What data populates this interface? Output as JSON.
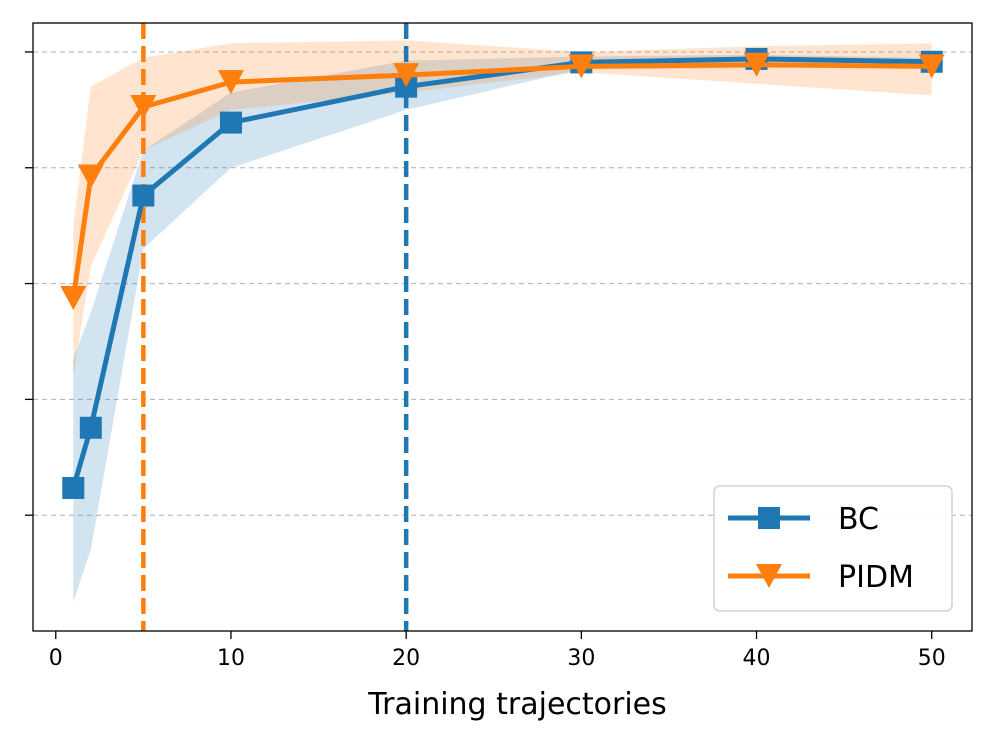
{
  "chart_data": {
    "type": "line",
    "title": "",
    "xlabel": "Training trajectories",
    "ylabel": "",
    "xlim": [
      -1.3,
      52.3
    ],
    "ylim": [
      0.0,
      1.05
    ],
    "xticks": [
      0,
      10,
      20,
      30,
      40,
      50
    ],
    "yticks": [
      0.2,
      0.4,
      0.6,
      0.8,
      1.0
    ],
    "ytick_labels_visible": false,
    "grid": "horizontal-dashed",
    "legend_position": "lower-right",
    "vlines": [
      {
        "x": 5,
        "color": "#ff7f0e",
        "style": "dashed"
      },
      {
        "x": 20,
        "color": "#1f77b4",
        "style": "dashed"
      }
    ],
    "series": [
      {
        "name": "BC",
        "color": "#1f77b4",
        "marker": "square",
        "x": [
          1,
          2,
          5,
          10,
          20,
          30,
          40,
          50
        ],
        "y": [
          0.247,
          0.351,
          0.752,
          0.878,
          0.94,
          0.982,
          0.988,
          0.983
        ],
        "lower": [
          0.05,
          0.14,
          0.66,
          0.8,
          0.9,
          0.97,
          0.972,
          0.975
        ],
        "upper": [
          0.47,
          0.55,
          0.83,
          0.93,
          0.985,
          0.992,
          0.995,
          0.99
        ]
      },
      {
        "name": "PIDM",
        "color": "#ff7f0e",
        "marker": "triangle-down",
        "x": [
          1,
          2,
          5,
          10,
          20,
          30,
          40,
          50
        ],
        "y": [
          0.575,
          0.785,
          0.905,
          0.948,
          0.96,
          0.975,
          0.978,
          0.975
        ],
        "lower": [
          0.44,
          0.63,
          0.83,
          0.9,
          0.93,
          0.965,
          0.945,
          0.925
        ],
        "upper": [
          0.7,
          0.94,
          0.99,
          1.015,
          1.02,
          1.0,
          1.01,
          1.015
        ]
      }
    ]
  }
}
